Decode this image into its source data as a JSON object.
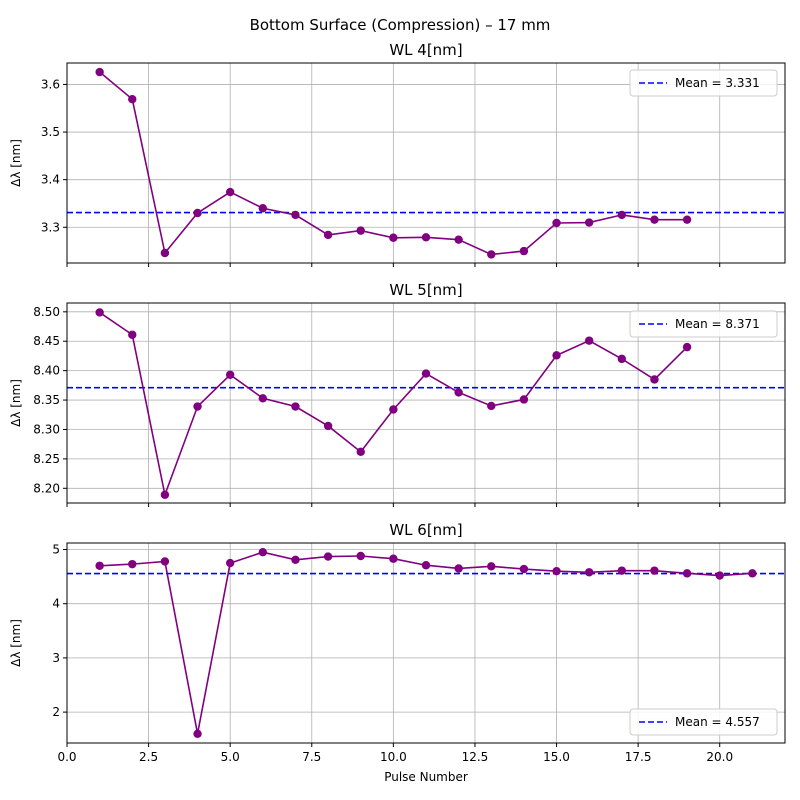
{
  "figure": {
    "suptitle": "Bottom Surface (Compression) – 17 mm"
  },
  "chart_data": [
    {
      "type": "line",
      "title": "WL 4[nm]",
      "ylabel": "Δλ [nm]",
      "xlabel": "",
      "xlim": [
        0,
        22
      ],
      "ylim": [
        3.225,
        3.645
      ],
      "xticks": [
        0.0,
        2.5,
        5.0,
        7.5,
        10.0,
        12.5,
        15.0,
        17.5,
        20.0
      ],
      "xtick_labels_visible": false,
      "yticks": [
        3.3,
        3.4,
        3.5,
        3.6
      ],
      "ytick_labels": [
        "3.3",
        "3.4",
        "3.5",
        "3.6"
      ],
      "grid": true,
      "legend_position": "upper-right",
      "line_color": "#800080",
      "mean_color": "#0000ff",
      "mean": 3.331,
      "mean_label": "Mean = 3.331",
      "x": [
        1,
        2,
        3,
        4,
        5,
        6,
        7,
        8,
        9,
        10,
        11,
        12,
        13,
        14,
        15,
        16,
        17,
        18,
        19
      ],
      "y": [
        3.626,
        3.569,
        3.246,
        3.33,
        3.374,
        3.34,
        3.326,
        3.284,
        3.293,
        3.278,
        3.279,
        3.274,
        3.243,
        3.25,
        3.309,
        3.31,
        3.326,
        3.316,
        3.316
      ]
    },
    {
      "type": "line",
      "title": "WL 5[nm]",
      "ylabel": "Δλ [nm]",
      "xlabel": "",
      "xlim": [
        0,
        22
      ],
      "ylim": [
        8.175,
        8.515
      ],
      "xticks": [
        0.0,
        2.5,
        5.0,
        7.5,
        10.0,
        12.5,
        15.0,
        17.5,
        20.0
      ],
      "xtick_labels_visible": false,
      "yticks": [
        8.2,
        8.25,
        8.3,
        8.35,
        8.4,
        8.45,
        8.5
      ],
      "ytick_labels": [
        "8.20",
        "8.25",
        "8.30",
        "8.35",
        "8.40",
        "8.45",
        "8.50"
      ],
      "grid": true,
      "legend_position": "upper-right",
      "line_color": "#800080",
      "mean_color": "#0000ff",
      "mean": 8.371,
      "mean_label": "Mean = 8.371",
      "x": [
        1,
        2,
        3,
        4,
        5,
        6,
        7,
        8,
        9,
        10,
        11,
        12,
        13,
        14,
        15,
        16,
        17,
        18,
        19
      ],
      "y": [
        8.499,
        8.461,
        8.189,
        8.339,
        8.393,
        8.353,
        8.339,
        8.306,
        8.262,
        8.334,
        8.395,
        8.363,
        8.34,
        8.351,
        8.426,
        8.451,
        8.42,
        8.385,
        8.44
      ]
    },
    {
      "type": "line",
      "title": "WL 6[nm]",
      "ylabel": "Δλ [nm]",
      "xlabel": "Pulse Number",
      "xlim": [
        0,
        22
      ],
      "ylim": [
        1.43,
        5.12
      ],
      "xticks": [
        0.0,
        2.5,
        5.0,
        7.5,
        10.0,
        12.5,
        15.0,
        17.5,
        20.0
      ],
      "xtick_labels_visible": true,
      "xtick_labels": [
        "0.0",
        "2.5",
        "5.0",
        "7.5",
        "10.0",
        "12.5",
        "15.0",
        "17.5",
        "20.0"
      ],
      "yticks": [
        2,
        3,
        4,
        5
      ],
      "ytick_labels": [
        "2",
        "3",
        "4",
        "5"
      ],
      "grid": true,
      "legend_position": "lower-right",
      "line_color": "#800080",
      "mean_color": "#0000ff",
      "mean": 4.557,
      "mean_label": "Mean = 4.557",
      "x": [
        1,
        2,
        3,
        4,
        5,
        6,
        7,
        8,
        9,
        10,
        11,
        12,
        13,
        14,
        15,
        16,
        17,
        18,
        19,
        20,
        21
      ],
      "y": [
        4.7,
        4.73,
        4.78,
        1.6,
        4.75,
        4.95,
        4.81,
        4.87,
        4.88,
        4.83,
        4.71,
        4.65,
        4.69,
        4.64,
        4.6,
        4.58,
        4.61,
        4.61,
        4.56,
        4.52,
        4.56
      ]
    }
  ]
}
